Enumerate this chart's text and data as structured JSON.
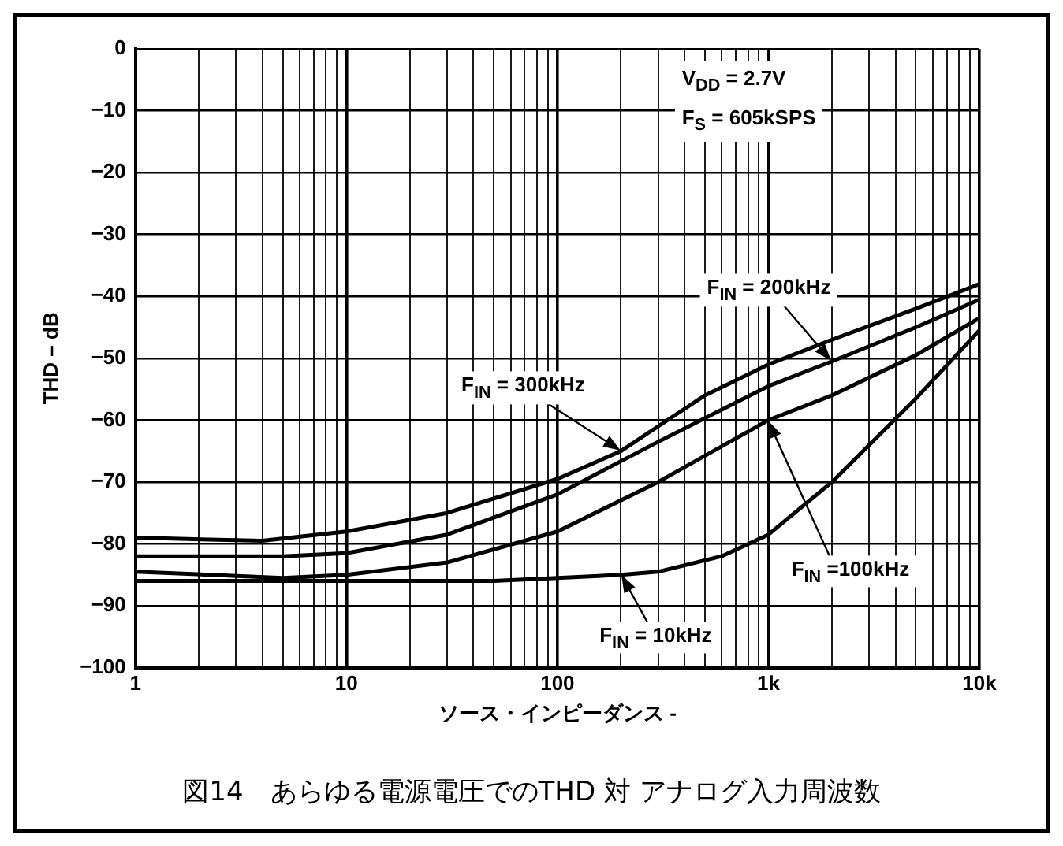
{
  "chart_data": {
    "type": "line",
    "title": "図14　あらゆる電源電圧でのTHD 対 アナログ入力周波数",
    "xlabel": "ソース・インピーダンス -",
    "ylabel": "THD – dB",
    "log": "x",
    "grid": true,
    "legend": false,
    "marker": "none",
    "line_style": "solid",
    "xlim": [
      1,
      10000
    ],
    "ylim": [
      -100,
      0
    ],
    "xticks": [
      1,
      {
        "value": 2,
        "label": null
      },
      {
        "value": 3,
        "label": null
      },
      {
        "value": 4,
        "label": null
      },
      {
        "value": 5,
        "label": null
      },
      {
        "value": 6,
        "label": null
      },
      {
        "value": 7,
        "label": null
      },
      {
        "value": 8,
        "label": null
      },
      {
        "value": 9,
        "label": null
      },
      10,
      {
        "value": 20,
        "label": null
      },
      {
        "value": 30,
        "label": null
      },
      {
        "value": 40,
        "label": null
      },
      {
        "value": 50,
        "label": null
      },
      {
        "value": 60,
        "label": null
      },
      {
        "value": 70,
        "label": null
      },
      {
        "value": 80,
        "label": null
      },
      {
        "value": 90,
        "label": null
      },
      100,
      {
        "value": 200,
        "label": null
      },
      {
        "value": 300,
        "label": null
      },
      {
        "value": 400,
        "label": null
      },
      {
        "value": 500,
        "label": null
      },
      {
        "value": 600,
        "label": null
      },
      {
        "value": 700,
        "label": null
      },
      {
        "value": 800,
        "label": null
      },
      {
        "value": 900,
        "label": null
      },
      {
        "value": 1000,
        "label": "1k"
      },
      {
        "value": 2000,
        "label": null
      },
      {
        "value": 3000,
        "label": null
      },
      {
        "value": 4000,
        "label": null
      },
      {
        "value": 5000,
        "label": null
      },
      {
        "value": 6000,
        "label": null
      },
      {
        "value": 7000,
        "label": null
      },
      {
        "value": 8000,
        "label": null
      },
      {
        "value": 9000,
        "label": null
      },
      {
        "value": 10000,
        "label": "10k"
      }
    ],
    "yticks": [
      0,
      {
        "value": -10,
        "label": "−10"
      },
      {
        "value": -20,
        "label": "−20"
      },
      {
        "value": -30,
        "label": "−30"
      },
      {
        "value": -40,
        "label": "−40"
      },
      {
        "value": -50,
        "label": "−50"
      },
      {
        "value": -60,
        "label": "−60"
      },
      {
        "value": -70,
        "label": "−70"
      },
      {
        "value": -80,
        "label": "−80"
      },
      {
        "value": -90,
        "label": "−90"
      },
      {
        "value": -100,
        "label": "−100"
      }
    ],
    "annotations": [
      "V$_{DD}$ = 2.7V",
      "F$_{S}$ = 605kSPS",
      {
        "text": "F$_{IN}$ = 300kHz",
        "x": 200,
        "y": -65
      },
      {
        "text": "F$_{IN}$ = 200kHz",
        "x": 2000,
        "y": -50.5
      },
      {
        "text": "F$_{IN}$ =100kHz",
        "x": 1000,
        "y": -60
      },
      {
        "text": "F$_{IN}$ = 10kHz",
        "x": 200,
        "y": -85
      }
    ],
    "series": [
      {
        "color": "#000000",
        "x": [
          1,
          4,
          10,
          30,
          100,
          200,
          300,
          500,
          1000,
          2000,
          5000,
          10000
        ],
        "values": [
          -79,
          -79.5,
          -78,
          -75,
          -69.5,
          -65,
          -61,
          -56,
          -51,
          -47,
          -42,
          -38
        ]
      },
      {
        "color": "#000000",
        "x": [
          1,
          5,
          10,
          30,
          100,
          300,
          1000,
          2000,
          5000,
          10000
        ],
        "values": [
          -82,
          -82,
          -81.5,
          -78.5,
          -72,
          -63.5,
          -54.5,
          -50.5,
          -45,
          -40.5
        ]
      },
      {
        "color": "#000000",
        "x": [
          1,
          5,
          10,
          30,
          100,
          300,
          1000,
          2000,
          5000,
          10000
        ],
        "values": [
          -84.5,
          -85.5,
          -85,
          -83,
          -78,
          -70,
          -60,
          -56,
          -49.5,
          -43.5
        ]
      },
      {
        "color": "#000000",
        "x": [
          1,
          10,
          50,
          100,
          200,
          300,
          600,
          1000,
          2000,
          5000,
          10000
        ],
        "values": [
          -86,
          -86,
          -86,
          -85.5,
          -85,
          -84.5,
          -82,
          -78.5,
          -70,
          -56.5,
          -45.5
        ]
      }
    ]
  }
}
